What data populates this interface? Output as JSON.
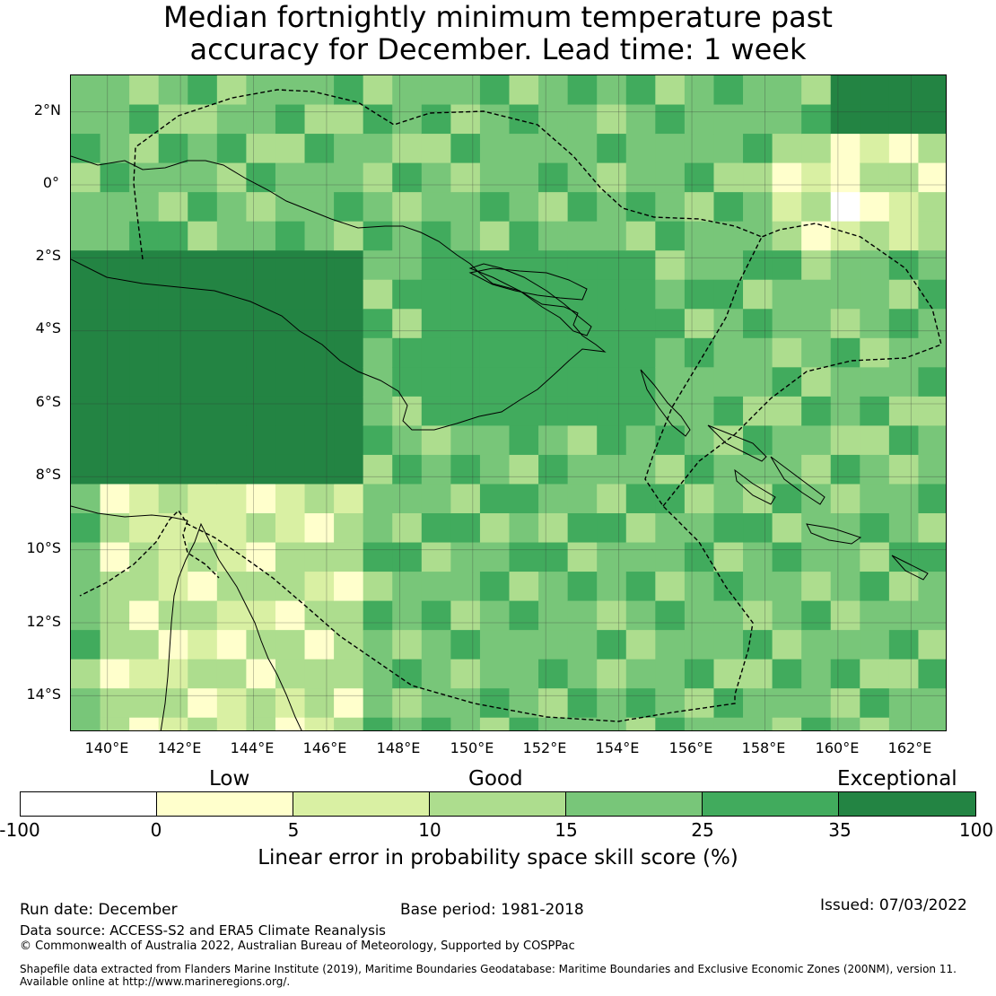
{
  "title_line1": "Median fortnightly minimum temperature past",
  "title_line2": "accuracy for December. Lead time: 1 week",
  "map": {
    "lat_labels": [
      "2°N",
      "0°",
      "2°S",
      "4°S",
      "6°S",
      "8°S",
      "10°S",
      "12°S",
      "14°S"
    ],
    "lon_labels": [
      "140°E",
      "142°E",
      "144°E",
      "146°E",
      "148°E",
      "150°E",
      "152°E",
      "154°E",
      "156°E",
      "158°E",
      "160°E",
      "162°E"
    ],
    "lon_range": [
      139.0,
      163.0
    ],
    "lat_range": [
      -15.0,
      3.0
    ]
  },
  "legend": {
    "categories": [
      "Low",
      "Good",
      "Exceptional"
    ],
    "ticks": [
      "-100",
      "0",
      "5",
      "10",
      "15",
      "25",
      "35",
      "100"
    ],
    "colors": [
      "#ffffff",
      "#ffffcc",
      "#d9f0a3",
      "#addd8e",
      "#78c679",
      "#41ab5d",
      "#238443"
    ],
    "label": "Linear error in probability space skill score (%)"
  },
  "footer": {
    "run_date": "Run date: December",
    "base_period": "Base period: 1981-2018",
    "issued": "Issued: 07/03/2022",
    "data_source": "Data source: ACCESS-S2 and ERA5 Climate Reanalysis",
    "copyright": "© Commonwealth of Australia 2022, Australian Bureau of Meteorology, Supported by COSPPac",
    "shapefile_line1": "Shapefile data extracted from Flanders Marine Institute (2019), Maritime Boundaries Geodatabase: Maritime Boundaries and Exclusive Economic Zones (200NM), version 11.",
    "shapefile_line2": "Available online at http://www.marineregions.org/."
  }
}
